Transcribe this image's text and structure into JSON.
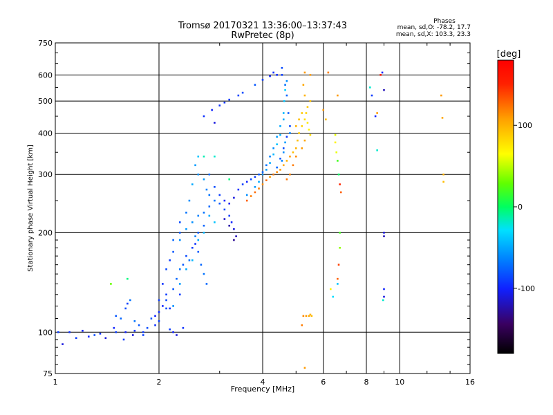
{
  "chart_data": {
    "type": "scatter",
    "title": "Tromsø 20170321 13:36:00–13:37:43",
    "subtitle": "RwPretec (8p)",
    "xlabel": "Frequency [MHz]",
    "ylabel": "Stationary phase Virtual Height [km]",
    "xscale": "log",
    "yscale": "log",
    "xlim": [
      1,
      16
    ],
    "ylim": [
      75,
      750
    ],
    "xticks": [
      1,
      2,
      4,
      6,
      8,
      10,
      16
    ],
    "xtick_labels": [
      "1",
      "2",
      "4",
      "6",
      "8",
      "10",
      "16"
    ],
    "yticks": [
      75,
      100,
      200,
      300,
      400,
      500,
      600,
      750
    ],
    "ytick_labels": [
      "75",
      "100",
      "200",
      "300",
      "400",
      "500",
      "600",
      "750"
    ],
    "grid": true,
    "stats": {
      "heading": "Phases",
      "line_o": "mean, sd,O: -78.2, 17.7",
      "line_x": "mean, sd,X: 103.3, 23.3"
    },
    "colorbar": {
      "label": "[deg]",
      "range": [
        -180,
        180
      ],
      "ticks": [
        100,
        0,
        -100
      ],
      "tick_labels": [
        "100",
        "0",
        "-100"
      ]
    },
    "series": [
      {
        "points": [
          [
            1.02,
            100,
            -90
          ],
          [
            1.05,
            92,
            -110
          ],
          [
            1.1,
            100,
            -95
          ],
          [
            1.2,
            101,
            -100
          ],
          [
            1.3,
            98,
            -85
          ],
          [
            1.4,
            96,
            -110
          ],
          [
            1.5,
            100,
            -90
          ],
          [
            1.6,
            100,
            -100
          ],
          [
            1.7,
            101,
            -95
          ],
          [
            1.8,
            100,
            -90
          ],
          [
            1.5,
            112,
            -80
          ],
          [
            1.6,
            118,
            -85
          ],
          [
            1.65,
            125,
            -70
          ],
          [
            1.62,
            122,
            -90
          ],
          [
            1.55,
            110,
            -75
          ],
          [
            1.7,
            108,
            -70
          ],
          [
            1.75,
            105,
            -80
          ],
          [
            1.9,
            110,
            -80
          ],
          [
            1.95,
            112,
            -100
          ],
          [
            2.0,
            125,
            -90
          ],
          [
            2.05,
            140,
            -95
          ],
          [
            2.1,
            155,
            -85
          ],
          [
            2.15,
            165,
            -90
          ],
          [
            2.2,
            175,
            -80
          ],
          [
            2.2,
            190,
            -75
          ],
          [
            2.3,
            200,
            -80
          ],
          [
            2.3,
            215,
            -85
          ],
          [
            2.4,
            230,
            -70
          ],
          [
            2.45,
            250,
            -60
          ],
          [
            2.5,
            280,
            -50
          ],
          [
            2.55,
            320,
            -55
          ],
          [
            2.6,
            340,
            -40
          ],
          [
            2.6,
            300,
            -60
          ],
          [
            2.7,
            290,
            -55
          ],
          [
            2.75,
            270,
            -65
          ],
          [
            2.8,
            260,
            -70
          ],
          [
            2.8,
            300,
            -75
          ],
          [
            2.9,
            275,
            -85
          ],
          [
            3.0,
            260,
            -90
          ],
          [
            3.1,
            250,
            -100
          ],
          [
            3.2,
            245,
            -105
          ],
          [
            3.3,
            255,
            -110
          ],
          [
            3.4,
            270,
            -95
          ],
          [
            3.5,
            280,
            -90
          ],
          [
            3.6,
            285,
            -100
          ],
          [
            3.7,
            290,
            -85
          ],
          [
            3.8,
            295,
            -90
          ],
          [
            3.9,
            300,
            -80
          ],
          [
            4.0,
            305,
            -75
          ],
          [
            4.1,
            320,
            -70
          ],
          [
            4.2,
            340,
            -65
          ],
          [
            4.3,
            360,
            -60
          ],
          [
            4.4,
            390,
            -55
          ],
          [
            4.5,
            420,
            -50
          ],
          [
            4.6,
            460,
            -45
          ],
          [
            4.62,
            500,
            -40
          ],
          [
            4.65,
            540,
            -35
          ],
          [
            4.55,
            600,
            -90
          ],
          [
            4.55,
            630,
            -85
          ],
          [
            4.7,
            575,
            -60
          ],
          [
            2.7,
            450,
            -95
          ],
          [
            2.85,
            470,
            -100
          ],
          [
            3.0,
            485,
            -95
          ],
          [
            3.2,
            505,
            -90
          ],
          [
            3.5,
            530,
            -85
          ],
          [
            3.8,
            560,
            -80
          ],
          [
            4.0,
            580,
            -90
          ],
          [
            4.2,
            595,
            -100
          ],
          [
            4.3,
            610,
            -95
          ],
          [
            2.9,
            430,
            -110
          ],
          [
            3.4,
            520,
            -88
          ],
          [
            3.1,
            495,
            -92
          ],
          [
            4.4,
            600,
            -96
          ],
          [
            2.3,
            190,
            -60
          ],
          [
            2.4,
            205,
            -55
          ],
          [
            2.5,
            215,
            -60
          ],
          [
            2.6,
            225,
            -65
          ],
          [
            2.7,
            230,
            -70
          ],
          [
            2.8,
            240,
            -75
          ],
          [
            2.9,
            250,
            -70
          ],
          [
            3.0,
            245,
            -80
          ],
          [
            3.1,
            235,
            -85
          ],
          [
            3.2,
            225,
            -90
          ],
          [
            3.25,
            215,
            -100
          ],
          [
            3.3,
            205,
            -110
          ],
          [
            3.35,
            195,
            -120
          ],
          [
            3.3,
            190,
            -130
          ],
          [
            3.2,
            210,
            -125
          ],
          [
            3.1,
            220,
            -115
          ],
          [
            2.2,
            135,
            -80
          ],
          [
            2.25,
            145,
            -75
          ],
          [
            2.3,
            155,
            -70
          ],
          [
            2.35,
            160,
            -80
          ],
          [
            2.4,
            170,
            -85
          ],
          [
            2.5,
            180,
            -90
          ],
          [
            2.55,
            185,
            -95
          ],
          [
            2.6,
            175,
            -80
          ],
          [
            2.65,
            160,
            -75
          ],
          [
            2.7,
            150,
            -70
          ],
          [
            2.75,
            140,
            -75
          ],
          [
            2.1,
            125,
            -85
          ],
          [
            2.15,
            118,
            -95
          ],
          [
            2.3,
            130,
            -90
          ],
          [
            2.45,
            165,
            -70
          ],
          [
            2.6,
            200,
            -80
          ],
          [
            2.7,
            210,
            -75
          ],
          [
            2.55,
            195,
            -65
          ],
          [
            2.2,
            120,
            -60
          ],
          [
            2.3,
            140,
            -55
          ],
          [
            2.4,
            155,
            -50
          ],
          [
            2.5,
            165,
            -45
          ],
          [
            2.6,
            190,
            -50
          ],
          [
            2.7,
            200,
            -45
          ],
          [
            2.8,
            225,
            -50
          ],
          [
            2.9,
            215,
            -40
          ],
          [
            2.0,
            115,
            -95
          ],
          [
            2.05,
            120,
            -100
          ],
          [
            2.1,
            130,
            -90
          ],
          [
            2.1,
            118,
            -85
          ],
          [
            2.0,
            108,
            -90
          ],
          [
            1.95,
            105,
            -95
          ],
          [
            1.8,
            98,
            -90
          ],
          [
            1.85,
            103,
            -85
          ],
          [
            3.6,
            260,
            -60
          ],
          [
            3.8,
            275,
            -55
          ],
          [
            3.9,
            285,
            -50
          ],
          [
            4.0,
            300,
            -60
          ],
          [
            4.1,
            310,
            -55
          ],
          [
            4.2,
            325,
            -50
          ],
          [
            4.3,
            345,
            -45
          ],
          [
            4.4,
            370,
            -40
          ],
          [
            4.5,
            395,
            -45
          ],
          [
            4.6,
            440,
            -50
          ],
          [
            4.3,
            300,
            -70
          ],
          [
            4.4,
            315,
            -75
          ],
          [
            4.5,
            335,
            -80
          ],
          [
            4.6,
            360,
            -85
          ],
          [
            4.7,
            390,
            -90
          ],
          [
            4.8,
            420,
            -85
          ],
          [
            4.75,
            460,
            -80
          ],
          [
            4.7,
            520,
            -75
          ],
          [
            4.65,
            560,
            -70
          ],
          [
            4.55,
            330,
            -65
          ],
          [
            4.6,
            350,
            -60
          ],
          [
            4.65,
            375,
            -55
          ],
          [
            4.8,
            400,
            -65
          ],
          [
            3.6,
            250,
            130
          ],
          [
            3.7,
            258,
            120
          ],
          [
            3.8,
            265,
            125
          ],
          [
            3.9,
            272,
            120
          ],
          [
            4.0,
            280,
            115
          ],
          [
            4.1,
            288,
            125
          ],
          [
            4.2,
            295,
            110
          ],
          [
            4.3,
            300,
            120
          ],
          [
            4.4,
            305,
            115
          ],
          [
            4.5,
            310,
            110
          ],
          [
            4.6,
            320,
            105
          ],
          [
            4.7,
            330,
            100
          ],
          [
            4.8,
            340,
            110
          ],
          [
            4.9,
            350,
            95
          ],
          [
            5.0,
            360,
            100
          ],
          [
            5.05,
            380,
            95
          ],
          [
            5.1,
            400,
            90
          ],
          [
            5.2,
            420,
            85
          ],
          [
            5.3,
            440,
            80
          ],
          [
            5.35,
            460,
            85
          ],
          [
            5.4,
            480,
            90
          ],
          [
            5.5,
            500,
            95
          ],
          [
            5.3,
            380,
            105
          ],
          [
            5.2,
            360,
            110
          ],
          [
            5.0,
            340,
            115
          ],
          [
            4.9,
            320,
            120
          ],
          [
            4.8,
            300,
            118
          ],
          [
            4.7,
            290,
            122
          ],
          [
            5.0,
            420,
            100
          ],
          [
            5.1,
            440,
            95
          ],
          [
            5.2,
            460,
            90
          ],
          [
            5.3,
            520,
            100
          ],
          [
            5.25,
            560,
            105
          ],
          [
            5.3,
            610,
            110
          ],
          [
            5.4,
            430,
            75
          ],
          [
            5.45,
            410,
            70
          ],
          [
            5.5,
            395,
            80
          ],
          [
            5.5,
            600,
            110
          ],
          [
            5.35,
            112,
            110
          ],
          [
            5.45,
            112,
            105
          ],
          [
            5.5,
            113,
            100
          ],
          [
            5.55,
            112,
            95
          ],
          [
            5.25,
            112,
            115
          ],
          [
            5.2,
            105,
            120
          ],
          [
            5.3,
            78,
            110
          ],
          [
            6.2,
            610,
            120
          ],
          [
            6.6,
            520,
            110
          ],
          [
            6.5,
            395,
            60
          ],
          [
            6.5,
            375,
            70
          ],
          [
            6.55,
            350,
            60
          ],
          [
            6.6,
            330,
            20
          ],
          [
            6.65,
            300,
            0
          ],
          [
            6.7,
            280,
            150
          ],
          [
            6.75,
            265,
            130
          ],
          [
            6.7,
            200,
            20
          ],
          [
            6.7,
            180,
            40
          ],
          [
            6.65,
            160,
            140
          ],
          [
            6.6,
            145,
            130
          ],
          [
            6.6,
            140,
            -40
          ],
          [
            6.3,
            135,
            70
          ],
          [
            6.4,
            128,
            -30
          ],
          [
            6.0,
            470,
            110
          ],
          [
            6.1,
            440,
            95
          ],
          [
            8.2,
            550,
            -20
          ],
          [
            8.3,
            520,
            -90
          ],
          [
            8.5,
            450,
            -100
          ],
          [
            8.6,
            460,
            110
          ],
          [
            8.8,
            600,
            160
          ],
          [
            8.9,
            610,
            -100
          ],
          [
            9.0,
            540,
            -120
          ],
          [
            9.0,
            200,
            -110
          ],
          [
            9.0,
            195,
            -120
          ],
          [
            9.0,
            135,
            -100
          ],
          [
            9.0,
            128,
            -110
          ],
          [
            8.95,
            125,
            -20
          ],
          [
            8.6,
            355,
            -20
          ],
          [
            13.2,
            520,
            110
          ],
          [
            13.3,
            445,
            105
          ],
          [
            13.4,
            300,
            100
          ],
          [
            13.4,
            285,
            95
          ],
          [
            1.45,
            140,
            30
          ],
          [
            1.62,
            145,
            -5
          ],
          [
            1.15,
            96,
            -90
          ],
          [
            1.25,
            97,
            -100
          ],
          [
            1.35,
            99,
            -95
          ],
          [
            1.48,
            103,
            -100
          ],
          [
            1.58,
            95,
            -90
          ],
          [
            1.68,
            98,
            -110
          ],
          [
            2.15,
            102,
            -90
          ],
          [
            2.2,
            100,
            -100
          ],
          [
            2.25,
            98,
            -110
          ],
          [
            2.35,
            103,
            -95
          ],
          [
            3.2,
            290,
            -5
          ],
          [
            2.9,
            340,
            -20
          ],
          [
            2.7,
            340,
            -15
          ]
        ]
      }
    ]
  }
}
